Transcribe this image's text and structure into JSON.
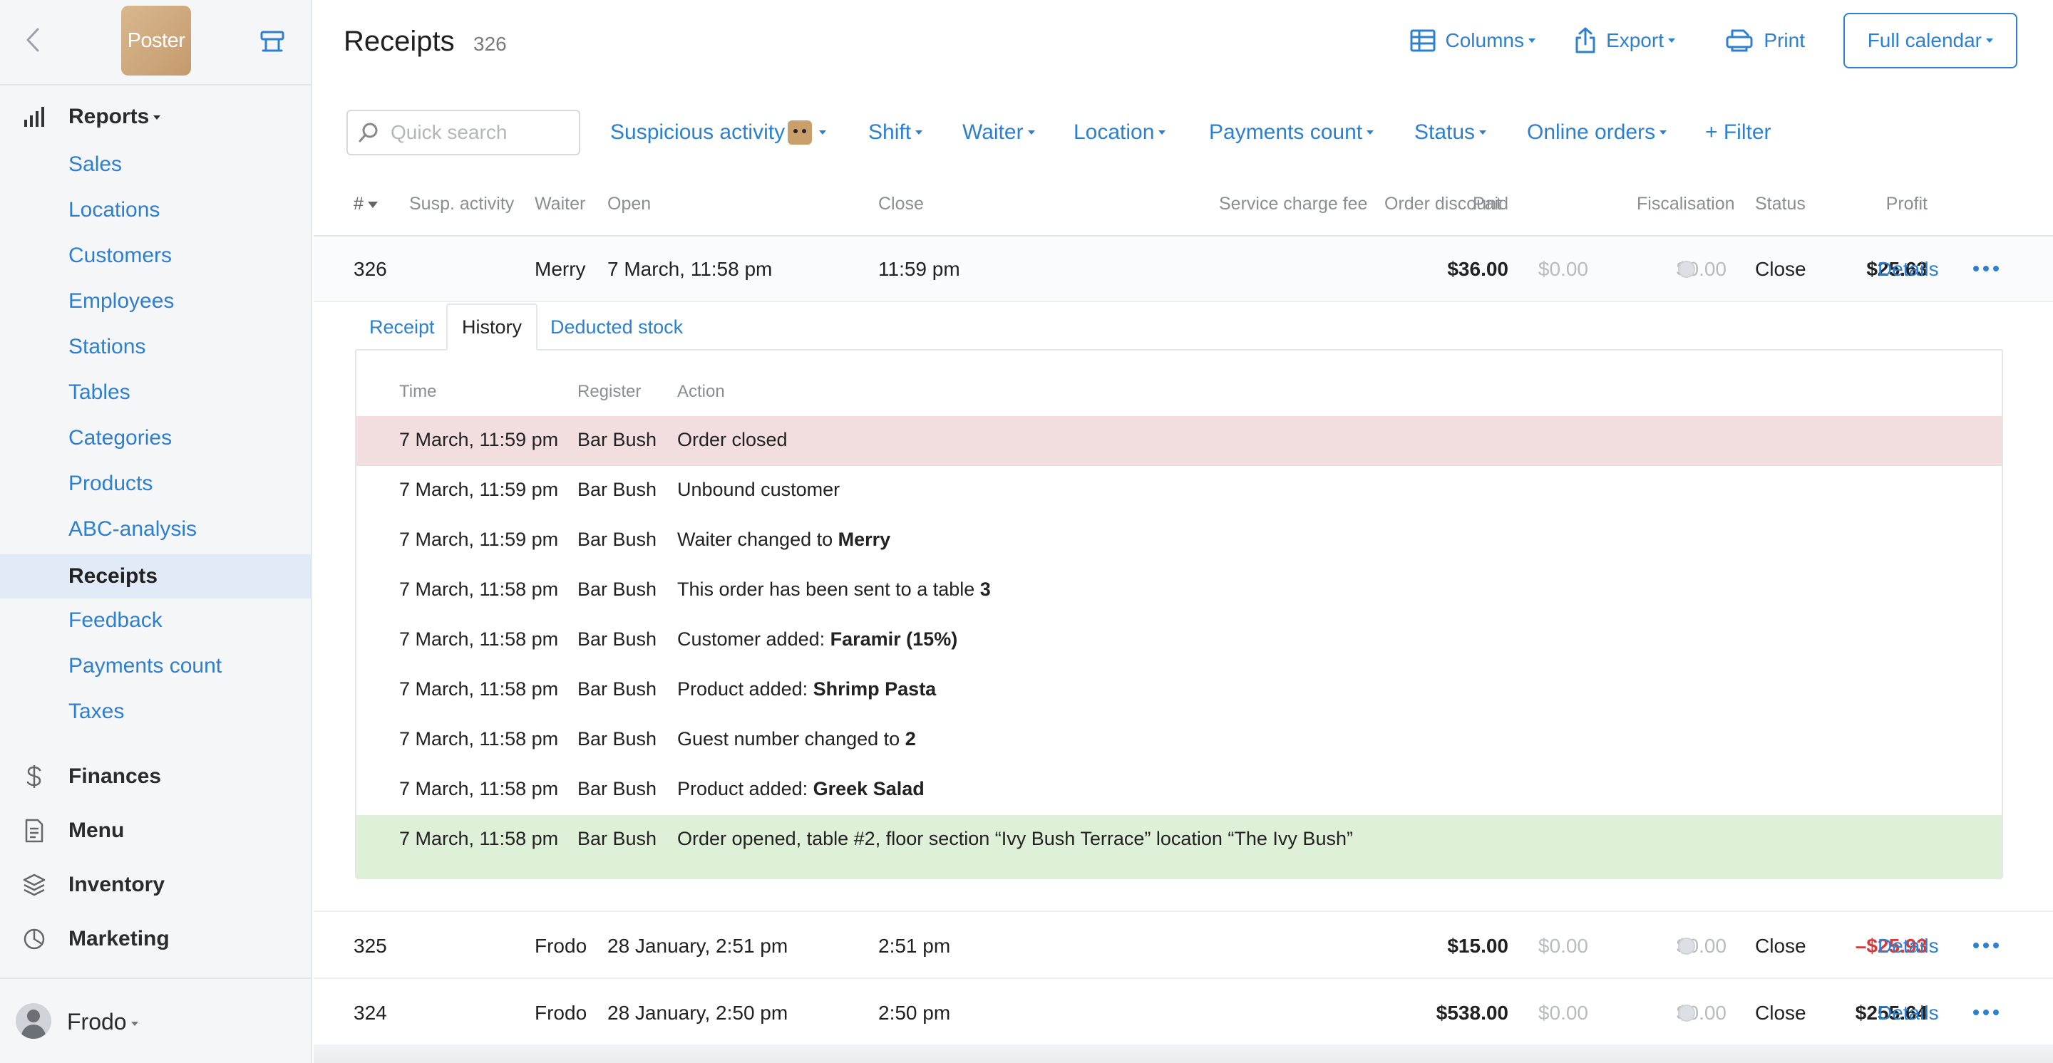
{
  "sidebar": {
    "logo_text": "Poster",
    "sections": {
      "reports": "Reports",
      "finances": "Finances",
      "menu": "Menu",
      "inventory": "Inventory",
      "marketing": "Marketing"
    },
    "report_items": [
      "Sales",
      "Locations",
      "Customers",
      "Employees",
      "Stations",
      "Tables",
      "Categories",
      "Products",
      "ABC-analysis",
      "Receipts",
      "Feedback",
      "Payments count",
      "Taxes"
    ],
    "active_item": "Receipts",
    "user_name": "Frodo"
  },
  "header": {
    "title": "Receipts",
    "count": "326",
    "columns_label": "Columns",
    "export_label": "Export",
    "print_label": "Print",
    "calendar_label": "Full calendar"
  },
  "filters": {
    "search_placeholder": "Quick search",
    "suspicious": "Suspicious activity",
    "shift": "Shift",
    "waiter": "Waiter",
    "location": "Location",
    "payments_count": "Payments count",
    "status": "Status",
    "online_orders": "Online orders",
    "add_filter": "+ Filter"
  },
  "table": {
    "columns": {
      "num": "#",
      "susp": "Susp. activity",
      "waiter": "Waiter",
      "open": "Open",
      "close": "Close",
      "paid": "Paid",
      "service": "Service charge fee",
      "discount": "Order discount",
      "profit": "Profit",
      "fiscal": "Fiscalisation",
      "status": "Status"
    },
    "rows": [
      {
        "num": "326",
        "waiter": "Merry",
        "open": "7 March, 11:58 pm",
        "close": "11:59 pm",
        "paid": "$36.00",
        "service": "$0.00",
        "discount": "$0.00",
        "profit": "$25.63",
        "status": "Close",
        "details": "Details"
      },
      {
        "num": "325",
        "waiter": "Frodo",
        "open": "28 January, 2:51 pm",
        "close": "2:51 pm",
        "paid": "$15.00",
        "service": "$0.00",
        "discount": "$0.00",
        "profit": "–$25.93",
        "status": "Close",
        "details": "Details"
      },
      {
        "num": "324",
        "waiter": "Frodo",
        "open": "28 January, 2:50 pm",
        "close": "2:50 pm",
        "paid": "$538.00",
        "service": "$0.00",
        "discount": "$0.00",
        "profit": "$255.64",
        "status": "Close",
        "details": "Details"
      }
    ]
  },
  "expanded": {
    "tabs": [
      "Receipt",
      "History",
      "Deducted stock"
    ],
    "active_tab": "History",
    "history_columns": {
      "time": "Time",
      "register": "Register",
      "action": "Action"
    },
    "history": [
      {
        "time": "7 March, 11:59 pm",
        "register": "Bar Bush",
        "action": "Order closed",
        "bold": ""
      },
      {
        "time": "7 March, 11:59 pm",
        "register": "Bar Bush",
        "action": "Unbound customer",
        "bold": ""
      },
      {
        "time": "7 March, 11:59 pm",
        "register": "Bar Bush",
        "action": "Waiter changed to ",
        "bold": "Merry"
      },
      {
        "time": "7 March, 11:58 pm",
        "register": "Bar Bush",
        "action": "This order has been sent to a table ",
        "bold": "3"
      },
      {
        "time": "7 March, 11:58 pm",
        "register": "Bar Bush",
        "action": "Customer added: ",
        "bold": "Faramir (15%)"
      },
      {
        "time": "7 March, 11:58 pm",
        "register": "Bar Bush",
        "action": "Product added: ",
        "bold": "Shrimp Pasta"
      },
      {
        "time": "7 March, 11:58 pm",
        "register": "Bar Bush",
        "action": "Guest number changed to ",
        "bold": "2"
      },
      {
        "time": "7 March, 11:58 pm",
        "register": "Bar Bush",
        "action": "Product added: ",
        "bold": "Greek Salad"
      },
      {
        "time": "7 March, 11:58 pm",
        "register": "Bar Bush",
        "action": "Order opened, table #2, floor section “Ivy Bush Terrace” location “The Ivy Bush”",
        "bold": ""
      }
    ]
  },
  "colors": {
    "accent": "#2d7fd0",
    "row_closed": "#f2dede",
    "row_opened": "#dff0d8",
    "negative": "#d73a3a"
  }
}
